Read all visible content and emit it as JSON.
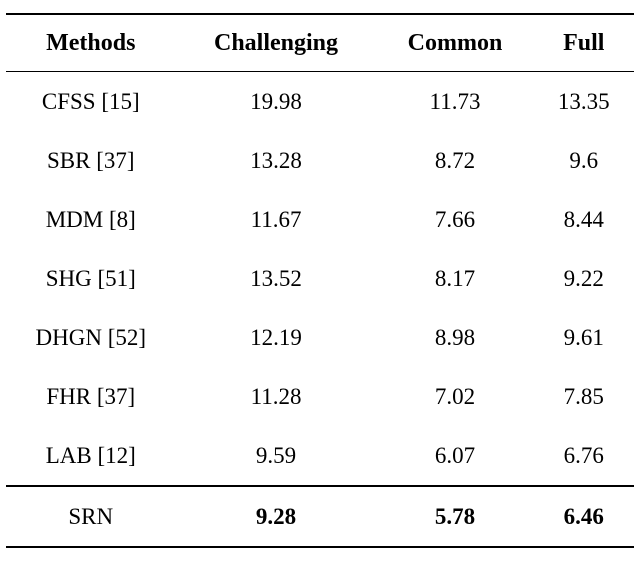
{
  "table": {
    "headers": [
      "Methods",
      "Challenging",
      "Common",
      "Full"
    ],
    "rows": [
      {
        "method": "CFSS [15]",
        "challenging": "19.98",
        "common": "11.73",
        "full": "13.35"
      },
      {
        "method": "SBR [37]",
        "challenging": "13.28",
        "common": "8.72",
        "full": "9.6"
      },
      {
        "method": "MDM [8]",
        "challenging": "11.67",
        "common": "7.66",
        "full": "8.44"
      },
      {
        "method": "SHG [51]",
        "challenging": "13.52",
        "common": "8.17",
        "full": "9.22"
      },
      {
        "method": "DHGN [52]",
        "challenging": "12.19",
        "common": "8.98",
        "full": "9.61"
      },
      {
        "method": "FHR [37]",
        "challenging": "11.28",
        "common": "7.02",
        "full": "7.85"
      },
      {
        "method": "LAB [12]",
        "challenging": "9.59",
        "common": "6.07",
        "full": "6.76"
      },
      {
        "method": "SRN",
        "challenging": "9.28",
        "common": "5.78",
        "full": "6.46"
      }
    ]
  }
}
